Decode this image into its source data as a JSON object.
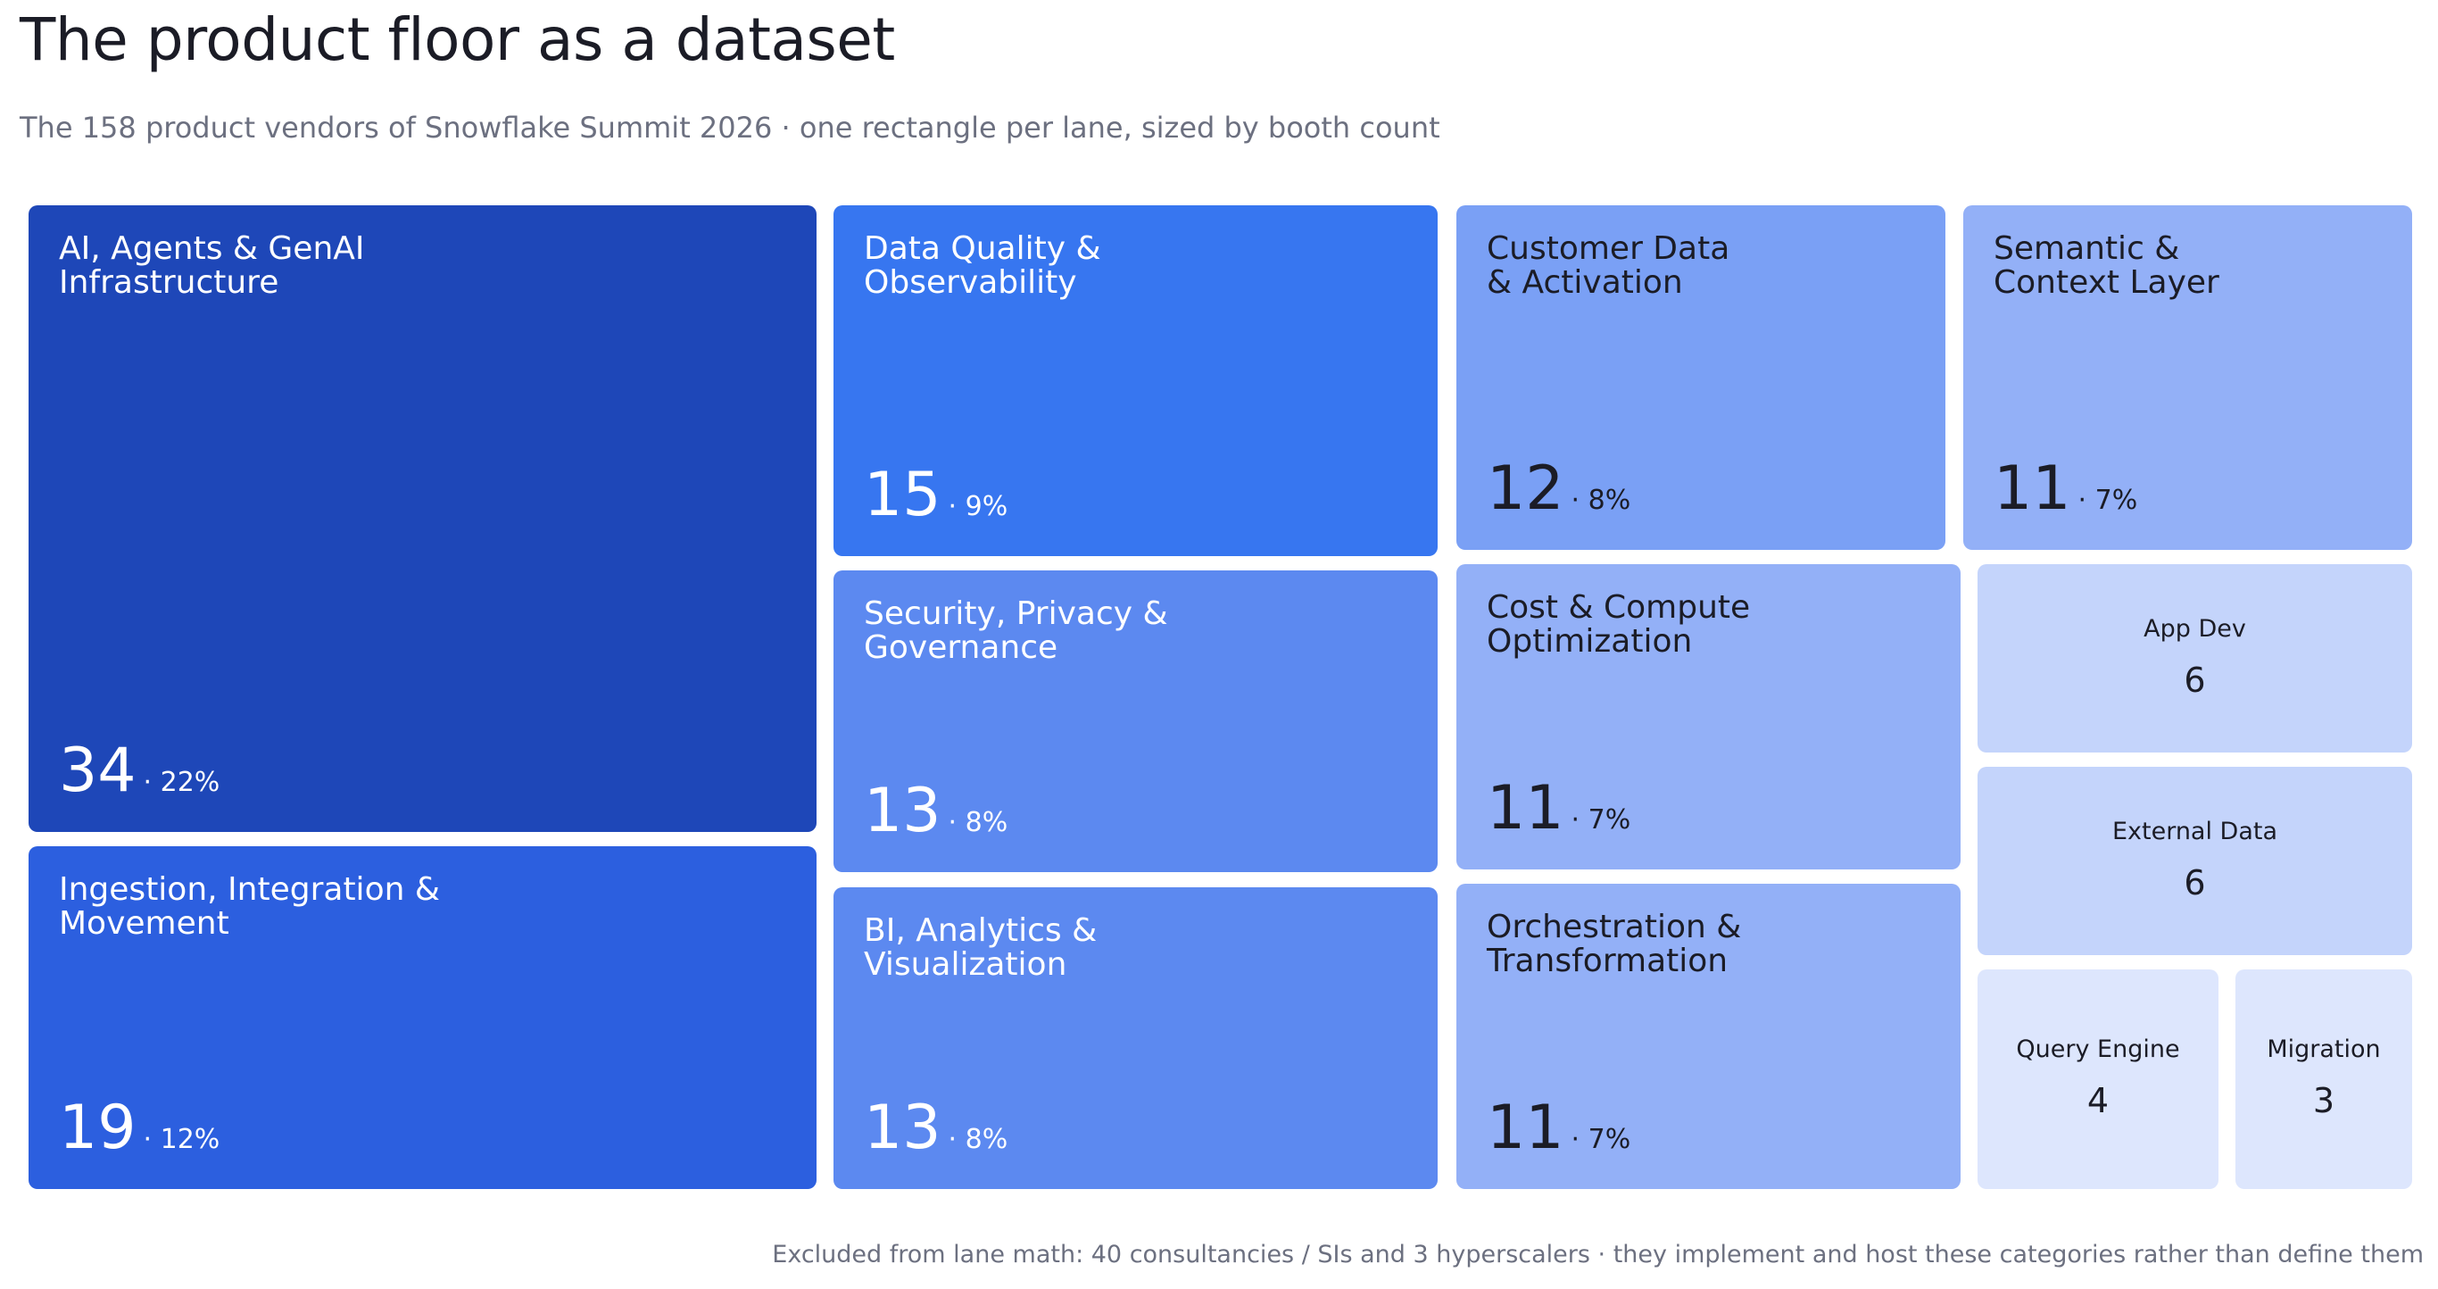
{
  "page": {
    "title": "The product floor as a dataset",
    "subtitle": "The 158 product vendors of Snowflake Summit 2026 · one rectangle per lane, sized by booth count",
    "footnote": "Excluded from lane math: 40 consultancies / SIs and 3 hyperscalers · they implement and host these categories rather than define them"
  },
  "chart_data": {
    "type": "treemap",
    "title": "The product floor as a dataset",
    "subtitle": "The 158 product vendors of Snowflake Summit 2026 · one rectangle per lane, sized by booth count",
    "total": 158,
    "items": [
      {
        "name": "AI, Agents & GenAI Infrastructure",
        "value": 34,
        "pct": "22%",
        "color": "#1e47b8",
        "text_color": "#ffffff"
      },
      {
        "name": "Ingestion, Integration & Movement",
        "value": 19,
        "pct": "12%",
        "color": "#2c5fdf",
        "text_color": "#ffffff"
      },
      {
        "name": "Data Quality & Observability",
        "value": 15,
        "pct": "9%",
        "color": "#3776f0",
        "text_color": "#ffffff"
      },
      {
        "name": "Security, Privacy & Governance",
        "value": 13,
        "pct": "8%",
        "color": "#5c89f0",
        "text_color": "#ffffff"
      },
      {
        "name": "BI, Analytics & Visualization",
        "value": 13,
        "pct": "8%",
        "color": "#5c89f0",
        "text_color": "#ffffff"
      },
      {
        "name": "Customer Data & Activation",
        "value": 12,
        "pct": "8%",
        "color": "#7aa0f5",
        "text_color": "#1b1c26"
      },
      {
        "name": "Semantic & Context Layer",
        "value": 11,
        "pct": "7%",
        "color": "#93b0f7",
        "text_color": "#1b1c26"
      },
      {
        "name": "Cost & Compute Optimization",
        "value": 11,
        "pct": "7%",
        "color": "#93b0f7",
        "text_color": "#1b1c26"
      },
      {
        "name": "Orchestration & Transformation",
        "value": 11,
        "pct": "7%",
        "color": "#93b0f7",
        "text_color": "#1b1c26"
      },
      {
        "name": "App Dev",
        "value": 6,
        "pct": "",
        "color": "#c4d4fb",
        "text_color": "#1b1c26"
      },
      {
        "name": "External Data",
        "value": 6,
        "pct": "",
        "color": "#c4d4fb",
        "text_color": "#1b1c26"
      },
      {
        "name": "Query Engine",
        "value": 4,
        "pct": "",
        "color": "#dde6fd",
        "text_color": "#1b1c26"
      },
      {
        "name": "Migration",
        "value": 3,
        "pct": "",
        "color": "#dde6fd",
        "text_color": "#1b1c26"
      }
    ],
    "excluded": {
      "consultancies_sis": 40,
      "hyperscalers": 3
    }
  }
}
